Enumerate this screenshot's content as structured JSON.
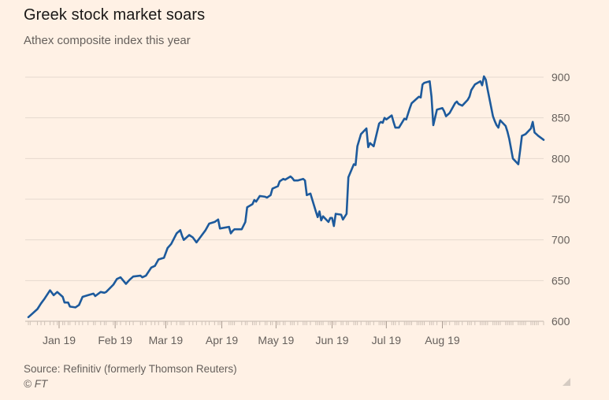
{
  "chart_data": {
    "type": "line",
    "title": "Greek stock market soars",
    "subtitle": "Athex composite index this year",
    "xlabel": "",
    "ylabel": "",
    "ylim": [
      600,
      900
    ],
    "yticks": [
      600,
      650,
      700,
      750,
      800,
      850,
      900
    ],
    "y_axis_position": "right",
    "grid": "horizontal",
    "xticks": [
      {
        "label": "Jan 19",
        "date": "2019-01-19"
      },
      {
        "label": "Feb 19",
        "date": "2019-02-19"
      },
      {
        "label": "Mar 19",
        "date": "2019-03-19"
      },
      {
        "label": "Apr 19",
        "date": "2019-04-19"
      },
      {
        "label": "May 19",
        "date": "2019-05-19"
      },
      {
        "label": "Jun 19",
        "date": "2019-06-19"
      },
      {
        "label": "Jul 19",
        "date": "2019-07-19"
      },
      {
        "label": "Aug 19",
        "date": "2019-08-19"
      }
    ],
    "series": [
      {
        "name": "",
        "color": "#1d5a9c",
        "points": [
          [
            "2019-01-02",
            605
          ],
          [
            "2019-01-03",
            607
          ],
          [
            "2019-01-07",
            615
          ],
          [
            "2019-01-09",
            622
          ],
          [
            "2019-01-11",
            628
          ],
          [
            "2019-01-14",
            638
          ],
          [
            "2019-01-16",
            632
          ],
          [
            "2019-01-18",
            636
          ],
          [
            "2019-01-21",
            630
          ],
          [
            "2019-01-22",
            623
          ],
          [
            "2019-01-24",
            623
          ],
          [
            "2019-01-25",
            618
          ],
          [
            "2019-01-28",
            617
          ],
          [
            "2019-01-30",
            620
          ],
          [
            "2019-02-01",
            630
          ],
          [
            "2019-02-04",
            632
          ],
          [
            "2019-02-07",
            634
          ],
          [
            "2019-02-08",
            631
          ],
          [
            "2019-02-11",
            636
          ],
          [
            "2019-02-13",
            635
          ],
          [
            "2019-02-14",
            636
          ],
          [
            "2019-02-18",
            645
          ],
          [
            "2019-02-20",
            652
          ],
          [
            "2019-02-22",
            654
          ],
          [
            "2019-02-25",
            646
          ],
          [
            "2019-02-27",
            651
          ],
          [
            "2019-03-01",
            655
          ],
          [
            "2019-03-05",
            656
          ],
          [
            "2019-03-06",
            654
          ],
          [
            "2019-03-08",
            656
          ],
          [
            "2019-03-11",
            666
          ],
          [
            "2019-03-13",
            668
          ],
          [
            "2019-03-15",
            676
          ],
          [
            "2019-03-18",
            678
          ],
          [
            "2019-03-20",
            690
          ],
          [
            "2019-03-22",
            695
          ],
          [
            "2019-03-25",
            708
          ],
          [
            "2019-03-27",
            712
          ],
          [
            "2019-03-28",
            705
          ],
          [
            "2019-03-29",
            700
          ],
          [
            "2019-04-01",
            706
          ],
          [
            "2019-04-03",
            703
          ],
          [
            "2019-04-05",
            697
          ],
          [
            "2019-04-08",
            706
          ],
          [
            "2019-04-10",
            712
          ],
          [
            "2019-04-12",
            720
          ],
          [
            "2019-04-15",
            722
          ],
          [
            "2019-04-17",
            725
          ],
          [
            "2019-04-18",
            714
          ],
          [
            "2019-04-23",
            716
          ],
          [
            "2019-04-24",
            708
          ],
          [
            "2019-04-25",
            711
          ],
          [
            "2019-04-26",
            713
          ],
          [
            "2019-04-30",
            713
          ],
          [
            "2019-05-02",
            722
          ],
          [
            "2019-05-03",
            740
          ],
          [
            "2019-05-06",
            744
          ],
          [
            "2019-05-07",
            749
          ],
          [
            "2019-05-08",
            747
          ],
          [
            "2019-05-10",
            754
          ],
          [
            "2019-05-13",
            753
          ],
          [
            "2019-05-14",
            752
          ],
          [
            "2019-05-16",
            755
          ],
          [
            "2019-05-17",
            763
          ],
          [
            "2019-05-20",
            766
          ],
          [
            "2019-05-21",
            772
          ],
          [
            "2019-05-23",
            775
          ],
          [
            "2019-05-24",
            774
          ],
          [
            "2019-05-27",
            778
          ],
          [
            "2019-05-28",
            776
          ],
          [
            "2019-05-29",
            773
          ],
          [
            "2019-05-31",
            773
          ],
          [
            "2019-06-03",
            775
          ],
          [
            "2019-06-04",
            773
          ],
          [
            "2019-06-05",
            755
          ],
          [
            "2019-06-07",
            757
          ],
          [
            "2019-06-10",
            735
          ],
          [
            "2019-06-11",
            728
          ],
          [
            "2019-06-12",
            735
          ],
          [
            "2019-06-13",
            724
          ],
          [
            "2019-06-14",
            729
          ],
          [
            "2019-06-17",
            722
          ],
          [
            "2019-06-18",
            727
          ],
          [
            "2019-06-19",
            727
          ],
          [
            "2019-06-20",
            717
          ],
          [
            "2019-06-21",
            732
          ],
          [
            "2019-06-24",
            731
          ],
          [
            "2019-06-25",
            725
          ],
          [
            "2019-06-27",
            732
          ],
          [
            "2019-06-28",
            777
          ],
          [
            "2019-07-01",
            793
          ],
          [
            "2019-07-02",
            792
          ],
          [
            "2019-07-03",
            815
          ],
          [
            "2019-07-05",
            830
          ],
          [
            "2019-07-08",
            837
          ],
          [
            "2019-07-09",
            814
          ],
          [
            "2019-07-10",
            819
          ],
          [
            "2019-07-12",
            815
          ],
          [
            "2019-07-15",
            843
          ],
          [
            "2019-07-16",
            845
          ],
          [
            "2019-07-17",
            844
          ],
          [
            "2019-07-18",
            850
          ],
          [
            "2019-07-19",
            848
          ],
          [
            "2019-07-22",
            853
          ],
          [
            "2019-07-23",
            845
          ],
          [
            "2019-07-24",
            838
          ],
          [
            "2019-07-26",
            838
          ],
          [
            "2019-07-29",
            849
          ],
          [
            "2019-07-30",
            848
          ],
          [
            "2019-07-31",
            855
          ],
          [
            "2019-08-01",
            862
          ],
          [
            "2019-08-02",
            868
          ],
          [
            "2019-08-05",
            874
          ],
          [
            "2019-08-06",
            876
          ],
          [
            "2019-08-07",
            875
          ],
          [
            "2019-08-08",
            891
          ],
          [
            "2019-08-09",
            893
          ],
          [
            "2019-08-12",
            895
          ],
          [
            "2019-08-13",
            876
          ],
          [
            "2019-08-14",
            841
          ],
          [
            "2019-08-16",
            860
          ],
          [
            "2019-08-19",
            862
          ],
          [
            "2019-08-20",
            858
          ],
          [
            "2019-08-21",
            852
          ],
          [
            "2019-08-23",
            856
          ],
          [
            "2019-08-26",
            868
          ],
          [
            "2019-08-27",
            870
          ],
          [
            "2019-08-28",
            867
          ],
          [
            "2019-08-30",
            865
          ],
          [
            "2019-09-02",
            872
          ],
          [
            "2019-09-03",
            876
          ],
          [
            "2019-09-04",
            884
          ],
          [
            "2019-09-06",
            891
          ],
          [
            "2019-09-09",
            895
          ],
          [
            "2019-09-10",
            890
          ],
          [
            "2019-09-11",
            901
          ],
          [
            "2019-09-12",
            897
          ],
          [
            "2019-09-13",
            885
          ],
          [
            "2019-09-16",
            852
          ],
          [
            "2019-09-17",
            846
          ],
          [
            "2019-09-18",
            841
          ],
          [
            "2019-09-19",
            838
          ],
          [
            "2019-09-20",
            847
          ],
          [
            "2019-09-23",
            840
          ],
          [
            "2019-09-24",
            833
          ],
          [
            "2019-09-25",
            824
          ],
          [
            "2019-09-26",
            812
          ],
          [
            "2019-09-27",
            800
          ],
          [
            "2019-09-30",
            793
          ],
          [
            "2019-10-01",
            810
          ],
          [
            "2019-10-02",
            828
          ],
          [
            "2019-10-03",
            829
          ],
          [
            "2019-10-04",
            830
          ],
          [
            "2019-10-07",
            837
          ],
          [
            "2019-10-08",
            845
          ],
          [
            "2019-10-09",
            832
          ],
          [
            "2019-10-10",
            830
          ],
          [
            "2019-10-11",
            828
          ],
          [
            "2019-10-14",
            823
          ]
        ]
      }
    ]
  },
  "footer": {
    "source": "Source: Refinitiv (formerly Thomson Reuters)",
    "copyright": "© FT"
  },
  "colors": {
    "background": "#fff1e5",
    "line": "#1d5a9c",
    "grid": "#e6d9ce",
    "axis_text": "#66605c"
  }
}
